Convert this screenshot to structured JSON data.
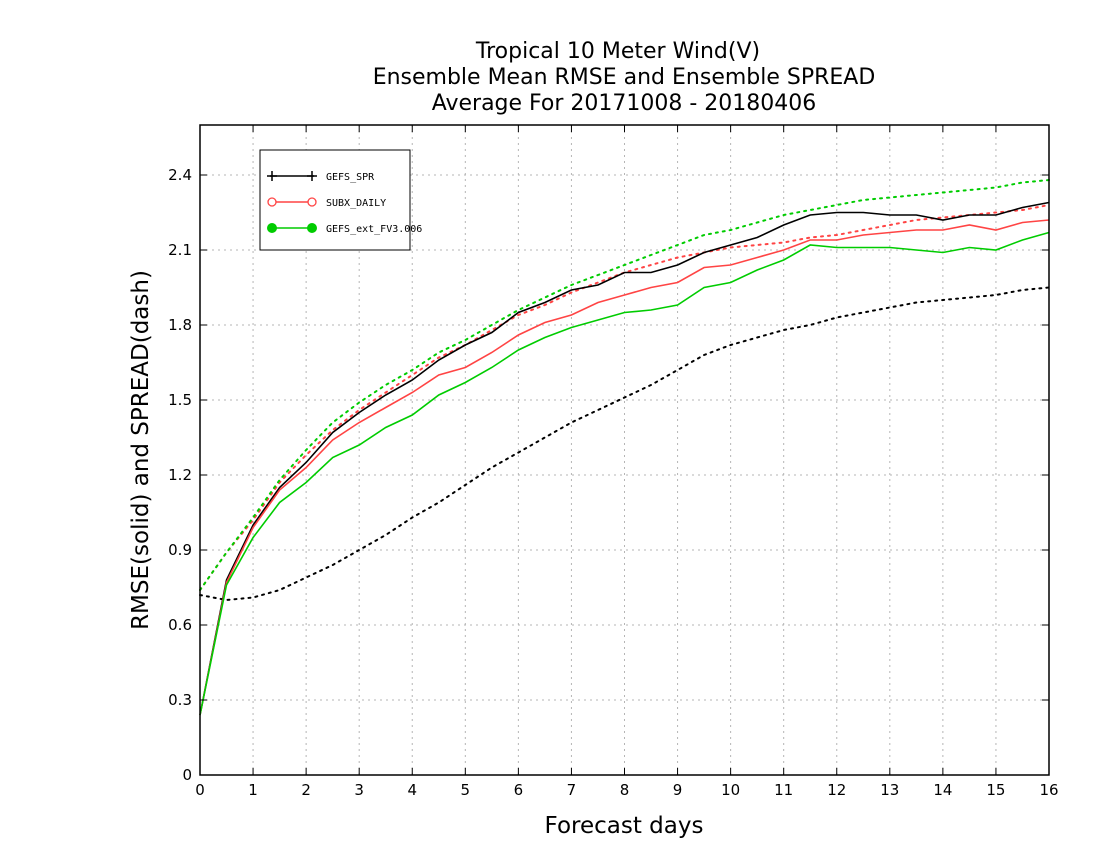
{
  "chart_data": {
    "type": "line",
    "title_lines": [
      "Tropical 10 Meter Wind(V)",
      "Ensemble Mean RMSE and Ensemble SPREAD",
      "Average For 20171008 - 20180406"
    ],
    "xlabel": "Forecast days",
    "ylabel": "RMSE(solid) and SPREAD(dash)",
    "xlim": [
      0,
      16
    ],
    "ylim": [
      0,
      2.6
    ],
    "xticks": [
      0,
      1,
      2,
      3,
      4,
      5,
      6,
      7,
      8,
      9,
      10,
      11,
      12,
      13,
      14,
      15,
      16
    ],
    "xtick_labels": [
      "0",
      "1",
      "2",
      "3",
      "4",
      "5",
      "6",
      "7",
      "8",
      "9",
      "10",
      "11",
      "12",
      "13",
      "14",
      "15",
      "16"
    ],
    "yticks": [
      0,
      0.3,
      0.6,
      0.9,
      1.2,
      1.5,
      1.8,
      2.1,
      2.4
    ],
    "ytick_labels": [
      "0",
      "0.3",
      "0.6",
      "0.9",
      "1.2",
      "1.5",
      "1.8",
      "2.1",
      "2.4"
    ],
    "grid": true,
    "legend_position": "top-left",
    "x": [
      0,
      0.5,
      1,
      1.5,
      2,
      2.5,
      3,
      3.5,
      4,
      4.5,
      5,
      5.5,
      6,
      6.5,
      7,
      7.5,
      8,
      8.5,
      9,
      9.5,
      10,
      10.5,
      11,
      11.5,
      12,
      12.5,
      13,
      13.5,
      14,
      14.5,
      15,
      15.5,
      16
    ],
    "series": [
      {
        "name": "GEFS_SPR",
        "color": "#000000",
        "marker": "plus",
        "rmse": [
          0.24,
          0.78,
          1.0,
          1.15,
          1.25,
          1.37,
          1.45,
          1.52,
          1.58,
          1.66,
          1.72,
          1.77,
          1.85,
          1.89,
          1.94,
          1.96,
          2.01,
          2.01,
          2.04,
          2.09,
          2.12,
          2.15,
          2.2,
          2.24,
          2.25,
          2.25,
          2.24,
          2.24,
          2.22,
          2.24,
          2.24,
          2.27,
          2.29
        ],
        "spread": [
          0.72,
          0.7,
          0.71,
          0.74,
          0.79,
          0.84,
          0.9,
          0.96,
          1.03,
          1.09,
          1.16,
          1.23,
          1.29,
          1.35,
          1.41,
          1.46,
          1.51,
          1.56,
          1.62,
          1.68,
          1.72,
          1.75,
          1.78,
          1.8,
          1.83,
          1.85,
          1.87,
          1.89,
          1.9,
          1.91,
          1.92,
          1.94,
          1.95
        ]
      },
      {
        "name": "SUBX_DAILY",
        "color": "#ff4444",
        "marker": "circle-open",
        "rmse": [
          0.24,
          0.77,
          0.99,
          1.14,
          1.23,
          1.34,
          1.41,
          1.47,
          1.53,
          1.6,
          1.63,
          1.69,
          1.76,
          1.81,
          1.84,
          1.89,
          1.92,
          1.95,
          1.97,
          2.03,
          2.04,
          2.07,
          2.1,
          2.14,
          2.14,
          2.16,
          2.17,
          2.18,
          2.18,
          2.2,
          2.18,
          2.21,
          2.22
        ],
        "spread": [
          0.74,
          0.89,
          1.02,
          1.17,
          1.28,
          1.38,
          1.46,
          1.53,
          1.6,
          1.67,
          1.72,
          1.78,
          1.84,
          1.88,
          1.93,
          1.97,
          2.01,
          2.04,
          2.07,
          2.09,
          2.11,
          2.12,
          2.13,
          2.15,
          2.16,
          2.18,
          2.2,
          2.22,
          2.23,
          2.24,
          2.25,
          2.26,
          2.28
        ]
      },
      {
        "name": "GEFS_ext_FV3.006",
        "color": "#00cc00",
        "marker": "circle-filled",
        "rmse": [
          0.24,
          0.76,
          0.95,
          1.09,
          1.17,
          1.27,
          1.32,
          1.39,
          1.44,
          1.52,
          1.57,
          1.63,
          1.7,
          1.75,
          1.79,
          1.82,
          1.85,
          1.86,
          1.88,
          1.95,
          1.97,
          2.02,
          2.06,
          2.12,
          2.11,
          2.11,
          2.11,
          2.1,
          2.09,
          2.11,
          2.1,
          2.14,
          2.17
        ],
        "spread": [
          0.74,
          0.89,
          1.03,
          1.18,
          1.3,
          1.41,
          1.49,
          1.56,
          1.62,
          1.69,
          1.74,
          1.8,
          1.86,
          1.91,
          1.96,
          2.0,
          2.04,
          2.08,
          2.12,
          2.16,
          2.18,
          2.21,
          2.24,
          2.26,
          2.28,
          2.3,
          2.31,
          2.32,
          2.33,
          2.34,
          2.35,
          2.37,
          2.38
        ]
      }
    ]
  }
}
